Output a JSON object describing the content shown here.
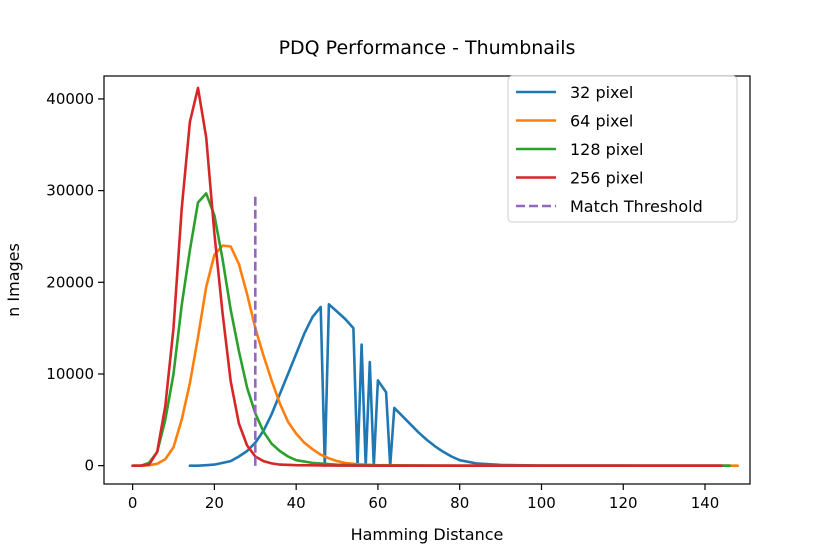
{
  "chart_data": {
    "type": "line",
    "title": "PDQ Performance - Thumbnails",
    "xlabel": "Hamming Distance",
    "ylabel": "n Images",
    "xlim": [
      -7,
      151
    ],
    "ylim": [
      -2000,
      42500
    ],
    "xticks": [
      0,
      20,
      40,
      60,
      80,
      100,
      120,
      140
    ],
    "yticks": [
      0,
      10000,
      20000,
      30000,
      40000
    ],
    "grid": false,
    "legend_position": "upper right",
    "series": [
      {
        "name": "32 pixel",
        "color": "#1f77b4",
        "dashed": false,
        "x": [
          14,
          16,
          18,
          20,
          22,
          24,
          26,
          28,
          30,
          32,
          34,
          36,
          38,
          40,
          42,
          44,
          46,
          47,
          48,
          50,
          52,
          54,
          55,
          56,
          57,
          58,
          59,
          60,
          62,
          63,
          64,
          66,
          68,
          70,
          72,
          74,
          76,
          78,
          80,
          84,
          90,
          100,
          110,
          120,
          130,
          140,
          146
        ],
        "y": [
          0,
          0,
          50,
          120,
          300,
          500,
          1000,
          1600,
          2500,
          3800,
          5600,
          7800,
          10000,
          12200,
          14400,
          16200,
          17300,
          0,
          17600,
          16800,
          16000,
          15000,
          0,
          13200,
          0,
          11300,
          0,
          9300,
          8000,
          0,
          6300,
          5400,
          4500,
          3600,
          2800,
          2100,
          1500,
          1000,
          600,
          250,
          80,
          20,
          10,
          5,
          0,
          0,
          0
        ]
      },
      {
        "name": "64 pixel",
        "color": "#ff7f0e",
        "dashed": false,
        "x": [
          0,
          2,
          4,
          6,
          8,
          10,
          12,
          14,
          16,
          18,
          20,
          22,
          24,
          26,
          28,
          30,
          32,
          34,
          36,
          38,
          40,
          42,
          44,
          46,
          48,
          50,
          52,
          55,
          60,
          70,
          80,
          100,
          120,
          140,
          148
        ],
        "y": [
          0,
          0,
          50,
          200,
          700,
          2000,
          5000,
          9000,
          14000,
          19500,
          23000,
          24000,
          23900,
          22000,
          18700,
          15000,
          12000,
          9300,
          6800,
          4800,
          3500,
          2500,
          1800,
          1200,
          800,
          500,
          300,
          150,
          50,
          10,
          0,
          0,
          0,
          0,
          0
        ]
      },
      {
        "name": "128 pixel",
        "color": "#2ca02c",
        "dashed": false,
        "x": [
          0,
          2,
          4,
          6,
          8,
          10,
          12,
          14,
          16,
          18,
          20,
          22,
          24,
          26,
          28,
          30,
          32,
          34,
          36,
          38,
          40,
          44,
          50,
          60,
          80,
          100,
          120,
          140,
          146
        ],
        "y": [
          0,
          0,
          300,
          1500,
          5000,
          10000,
          17500,
          23500,
          28700,
          29700,
          27300,
          22500,
          17000,
          12500,
          8500,
          5700,
          3700,
          2400,
          1600,
          1000,
          600,
          300,
          100,
          30,
          0,
          0,
          0,
          0,
          0
        ]
      },
      {
        "name": "256 pixel",
        "color": "#d62728",
        "dashed": false,
        "x": [
          0,
          2,
          4,
          6,
          8,
          10,
          12,
          14,
          16,
          18,
          20,
          22,
          24,
          26,
          28,
          30,
          32,
          34,
          36,
          40,
          50,
          60,
          80,
          100,
          120,
          144
        ],
        "y": [
          0,
          0,
          100,
          1500,
          6500,
          15000,
          28000,
          37500,
          41200,
          35800,
          25300,
          16600,
          9200,
          4600,
          2200,
          1000,
          500,
          250,
          120,
          50,
          10,
          0,
          0,
          0,
          0,
          0
        ]
      },
      {
        "name": "Match Threshold",
        "color": "#9467bd",
        "dashed": true,
        "x": [
          30,
          30
        ],
        "y": [
          0,
          29500
        ]
      }
    ]
  }
}
